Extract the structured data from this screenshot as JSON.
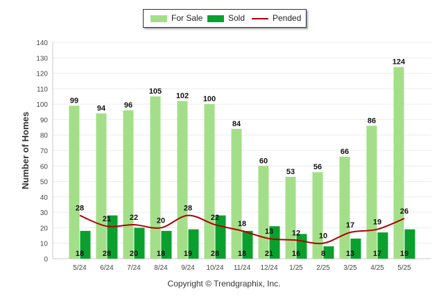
{
  "copyright": "Copyright © Trendgraphix, Inc.",
  "chart_data": {
    "type": "bar",
    "ylabel": "Number of Homes",
    "xlabel": "",
    "ylim": [
      0,
      140
    ],
    "yticks": [
      0,
      10,
      20,
      30,
      40,
      50,
      60,
      70,
      80,
      90,
      100,
      110,
      120,
      130,
      140
    ],
    "grid": true,
    "legend_position": "top-center",
    "categories": [
      "5/24",
      "6/24",
      "7/24",
      "8/24",
      "9/24",
      "10/24",
      "11/24",
      "12/24",
      "1/25",
      "2/25",
      "3/25",
      "4/25",
      "5/25"
    ],
    "series": [
      {
        "name": "For Sale",
        "kind": "bar",
        "color": "#a3df88",
        "values": [
          99,
          94,
          96,
          105,
          102,
          100,
          84,
          60,
          53,
          56,
          66,
          86,
          124
        ]
      },
      {
        "name": "Sold",
        "kind": "bar",
        "color": "#0aa02e",
        "values": [
          18,
          28,
          20,
          18,
          19,
          28,
          18,
          21,
          16,
          8,
          13,
          17,
          19
        ]
      },
      {
        "name": "Pended",
        "kind": "line",
        "color": "#b00000",
        "values": [
          28,
          21,
          22,
          20,
          28,
          22,
          18,
          13,
          12,
          10,
          17,
          19,
          26
        ]
      }
    ]
  }
}
